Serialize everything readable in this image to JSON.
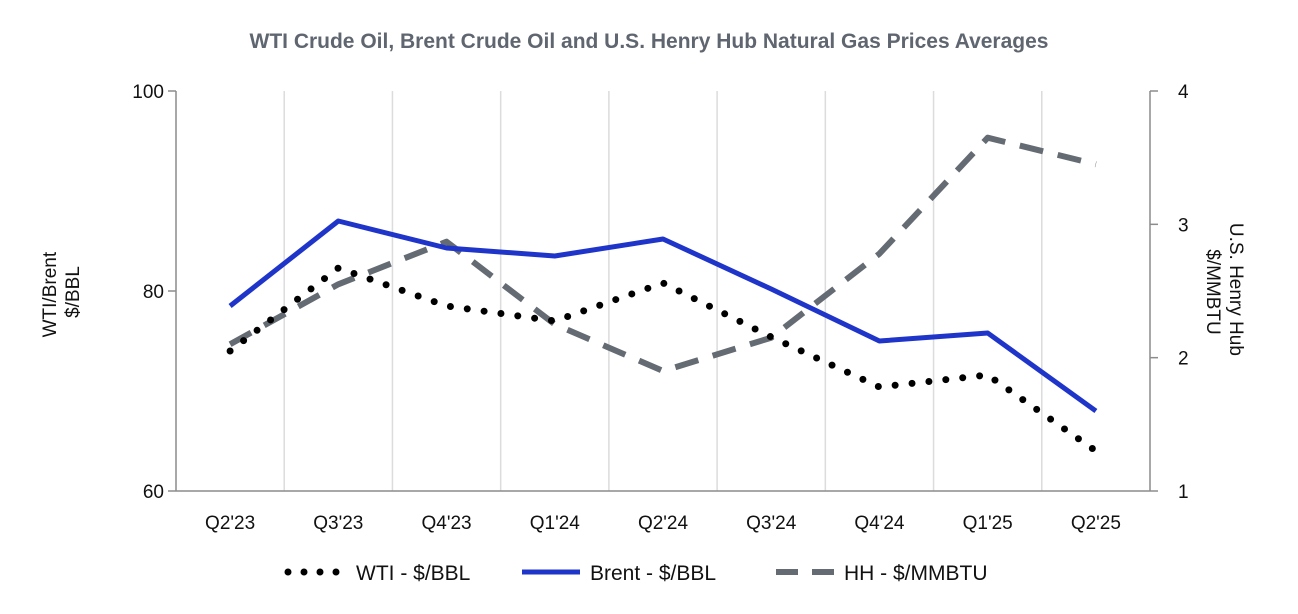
{
  "chart_data": {
    "type": "line",
    "title": "WTI Crude Oil, Brent Crude Oil and U.S. Henry Hub Natural Gas Prices Averages",
    "categories": [
      "Q2'23",
      "Q3'23",
      "Q4'23",
      "Q1'24",
      "Q2'24",
      "Q3'24",
      "Q4'24",
      "Q1'25",
      "Q2'25"
    ],
    "ylabel_left": [
      "WTI/Brent",
      "$/BBL"
    ],
    "ylabel_right": [
      "U.S. Henry Hub",
      "$/MMBTU"
    ],
    "ylim_left": [
      60,
      100
    ],
    "yticks_left": [
      60,
      80,
      100
    ],
    "ylim_right": [
      1,
      4
    ],
    "yticks_right": [
      1,
      2,
      3,
      4
    ],
    "grid": "vertical",
    "legend_position": "bottom",
    "series": [
      {
        "name": "WTI - $/BBL",
        "axis": "left",
        "style": "dotted",
        "color": "#000000",
        "values": [
          74.0,
          82.3,
          78.5,
          77.0,
          80.8,
          75.4,
          70.4,
          71.6,
          64.0
        ]
      },
      {
        "name": "Brent - $/BBL",
        "axis": "left",
        "style": "solid",
        "color": "#1f35c9",
        "values": [
          78.5,
          87.0,
          84.3,
          83.5,
          85.2,
          80.2,
          75.0,
          75.8,
          68.0
        ]
      },
      {
        "name": "HH - $/MMBTU",
        "axis": "right",
        "style": "dashed",
        "color": "#646b73",
        "values": [
          2.1,
          2.55,
          2.87,
          2.25,
          1.9,
          2.15,
          2.78,
          3.65,
          3.45
        ]
      }
    ]
  }
}
